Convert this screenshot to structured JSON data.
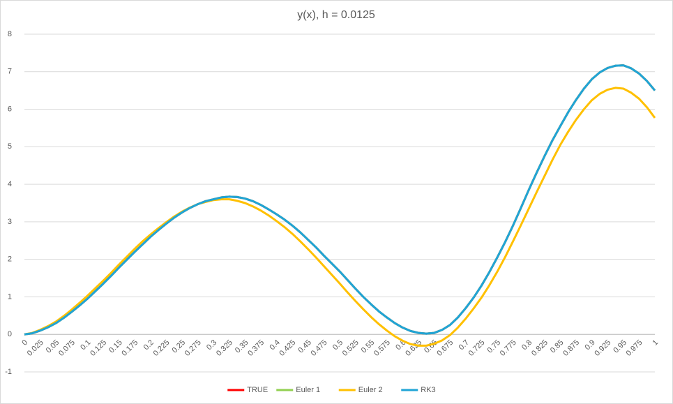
{
  "chart_data": {
    "type": "line",
    "title": "y(x), h = 0.0125",
    "categories": [
      "0",
      null,
      "0.025",
      null,
      "0.05",
      null,
      "0.075",
      null,
      "0.1",
      null,
      "0.125",
      null,
      "0.15",
      null,
      "0.175",
      null,
      "0.2",
      null,
      "0.225",
      null,
      "0.25",
      null,
      "0.275",
      null,
      "0.3",
      null,
      "0.325",
      null,
      "0.35",
      null,
      "0.375",
      null,
      "0.4",
      null,
      "0.425",
      null,
      "0.45",
      null,
      "0.475",
      null,
      "0.5",
      null,
      "0.525",
      null,
      "0.55",
      null,
      "0.575",
      null,
      "0.6",
      null,
      "0.625",
      null,
      "0.65",
      null,
      "0.675",
      null,
      "0.7",
      null,
      "0.725",
      null,
      "0.75",
      null,
      "0.775",
      null,
      "0.8",
      null,
      "0.825",
      null,
      "0.85",
      null,
      "0.875",
      null,
      "0.9",
      null,
      "0.925",
      null,
      "0.95",
      null,
      "0.975",
      null,
      "1"
    ],
    "series": [
      {
        "name": "TRUE",
        "color": "#ff0000",
        "values": [
          0,
          0.03,
          0.1,
          0.19,
          0.3,
          0.44,
          0.6,
          0.77,
          0.95,
          1.15,
          1.35,
          1.56,
          1.78,
          1.99,
          2.2,
          2.4,
          2.6,
          2.78,
          2.95,
          3.11,
          3.25,
          3.37,
          3.47,
          3.55,
          3.6,
          3.65,
          3.67,
          3.66,
          3.62,
          3.55,
          3.45,
          3.33,
          3.2,
          3.06,
          2.9,
          2.72,
          2.52,
          2.32,
          2.1,
          1.89,
          1.68,
          1.45,
          1.22,
          1.0,
          0.8,
          0.61,
          0.45,
          0.3,
          0.18,
          0.09,
          0.04,
          0.02,
          0.04,
          0.12,
          0.25,
          0.45,
          0.7,
          0.98,
          1.3,
          1.66,
          2.05,
          2.46,
          2.9,
          3.37,
          3.85,
          4.31,
          4.75,
          5.17,
          5.55,
          5.92,
          6.25,
          6.55,
          6.8,
          6.98,
          7.1,
          7.16,
          7.17,
          7.09,
          6.95,
          6.75,
          6.5
        ]
      },
      {
        "name": "Euler 1",
        "color": "#92d050",
        "values": [
          0,
          0.03,
          0.1,
          0.19,
          0.3,
          0.44,
          0.6,
          0.77,
          0.95,
          1.15,
          1.35,
          1.56,
          1.78,
          1.99,
          2.2,
          2.4,
          2.6,
          2.78,
          2.95,
          3.11,
          3.25,
          3.37,
          3.47,
          3.55,
          3.6,
          3.65,
          3.67,
          3.66,
          3.62,
          3.55,
          3.45,
          3.33,
          3.2,
          3.06,
          2.9,
          2.72,
          2.52,
          2.32,
          2.1,
          1.89,
          1.68,
          1.45,
          1.22,
          1.0,
          0.8,
          0.61,
          0.45,
          0.3,
          0.18,
          0.09,
          0.04,
          0.02,
          0.04,
          0.12,
          0.25,
          0.45,
          0.7,
          0.98,
          1.3,
          1.66,
          2.05,
          2.46,
          2.9,
          3.37,
          3.85,
          4.31,
          4.75,
          5.17,
          5.55,
          5.92,
          6.25,
          6.55,
          6.8,
          6.98,
          7.1,
          7.16,
          7.17,
          7.09,
          6.95,
          6.75,
          6.5
        ]
      },
      {
        "name": "Euler 2",
        "color": "#ffc000",
        "values": [
          0,
          0.04,
          0.12,
          0.22,
          0.34,
          0.49,
          0.66,
          0.84,
          1.03,
          1.23,
          1.43,
          1.64,
          1.86,
          2.07,
          2.28,
          2.48,
          2.66,
          2.83,
          2.99,
          3.14,
          3.27,
          3.38,
          3.47,
          3.53,
          3.58,
          3.6,
          3.6,
          3.56,
          3.5,
          3.41,
          3.3,
          3.17,
          3.02,
          2.86,
          2.68,
          2.48,
          2.27,
          2.05,
          1.82,
          1.59,
          1.36,
          1.12,
          0.89,
          0.67,
          0.46,
          0.27,
          0.1,
          -0.05,
          -0.17,
          -0.26,
          -0.3,
          -0.3,
          -0.25,
          -0.16,
          -0.02,
          0.18,
          0.42,
          0.69,
          0.98,
          1.31,
          1.67,
          2.06,
          2.48,
          2.91,
          3.35,
          3.79,
          4.22,
          4.65,
          5.05,
          5.4,
          5.72,
          6.0,
          6.24,
          6.41,
          6.52,
          6.57,
          6.55,
          6.44,
          6.28,
          6.05,
          5.77
        ]
      },
      {
        "name": "RK3",
        "color": "#20a4d6",
        "values": [
          0,
          0.03,
          0.1,
          0.19,
          0.3,
          0.44,
          0.6,
          0.77,
          0.95,
          1.15,
          1.35,
          1.56,
          1.78,
          1.99,
          2.2,
          2.4,
          2.6,
          2.78,
          2.95,
          3.11,
          3.25,
          3.37,
          3.47,
          3.55,
          3.6,
          3.65,
          3.67,
          3.66,
          3.62,
          3.55,
          3.45,
          3.33,
          3.2,
          3.06,
          2.9,
          2.72,
          2.52,
          2.32,
          2.1,
          1.89,
          1.68,
          1.45,
          1.22,
          1.0,
          0.8,
          0.61,
          0.45,
          0.3,
          0.18,
          0.09,
          0.04,
          0.02,
          0.04,
          0.12,
          0.25,
          0.45,
          0.7,
          0.98,
          1.3,
          1.66,
          2.05,
          2.46,
          2.9,
          3.37,
          3.85,
          4.31,
          4.75,
          5.17,
          5.55,
          5.92,
          6.25,
          6.55,
          6.8,
          6.98,
          7.1,
          7.16,
          7.17,
          7.09,
          6.95,
          6.75,
          6.5
        ]
      }
    ],
    "ylim": [
      -1,
      8
    ],
    "yticks": [
      -1,
      0,
      1,
      2,
      3,
      4,
      5,
      6,
      7,
      8
    ],
    "grid": true,
    "legend": "bottom"
  }
}
